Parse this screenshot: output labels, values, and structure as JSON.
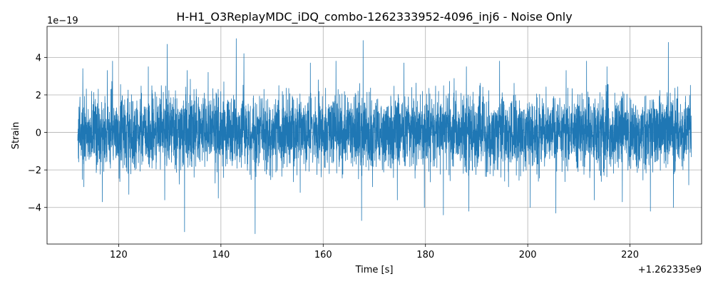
{
  "chart_data": {
    "type": "line",
    "title": "H-H1_O3ReplayMDC_iDQ_combo-1262333952-4096_inj6 - Noise Only",
    "xlabel": "Time [s]",
    "ylabel": "Strain",
    "x_offset_label": "+1.262335e9",
    "y_scale_label": "1e−19",
    "xlim": [
      106,
      234
    ],
    "ylim": [
      -5.95,
      5.65
    ],
    "x_ticks": [
      120,
      140,
      160,
      180,
      200,
      220
    ],
    "x_tick_labels": [
      "120",
      "140",
      "160",
      "180",
      "200",
      "220"
    ],
    "y_ticks": [
      -4,
      -2,
      0,
      2,
      4
    ],
    "y_tick_labels": [
      "−4",
      "−2",
      "0",
      "2",
      "4"
    ],
    "grid": true,
    "legend": "none",
    "series": [
      {
        "color": "#1f77b4",
        "x_start": 112,
        "x_end": 232,
        "typical_amplitude": 1.8,
        "peaks": [
          {
            "x": 113.0,
            "y": 3.4
          },
          {
            "x": 117.8,
            "y": 3.3
          },
          {
            "x": 118.8,
            "y": 3.8
          },
          {
            "x": 125.8,
            "y": 3.5
          },
          {
            "x": 129.5,
            "y": 4.7
          },
          {
            "x": 133.4,
            "y": 3.3
          },
          {
            "x": 137.5,
            "y": 3.2
          },
          {
            "x": 143.0,
            "y": 5.0
          },
          {
            "x": 144.5,
            "y": 4.2
          },
          {
            "x": 157.5,
            "y": 3.7
          },
          {
            "x": 162.5,
            "y": 3.8
          },
          {
            "x": 167.8,
            "y": 4.9
          },
          {
            "x": 175.8,
            "y": 3.7
          },
          {
            "x": 179.8,
            "y": 4.8
          },
          {
            "x": 183.5,
            "y": 4.0
          },
          {
            "x": 188.0,
            "y": 3.5
          },
          {
            "x": 194.5,
            "y": 3.8
          },
          {
            "x": 207.5,
            "y": 3.3
          },
          {
            "x": 211.5,
            "y": 3.8
          },
          {
            "x": 215.5,
            "y": 3.5
          },
          {
            "x": 227.5,
            "y": 4.8
          },
          {
            "x": 231.5,
            "y": 3.3
          }
        ],
        "troughs": [
          {
            "x": 113.2,
            "y": -2.9
          },
          {
            "x": 116.8,
            "y": -3.7
          },
          {
            "x": 122.0,
            "y": -3.3
          },
          {
            "x": 129.0,
            "y": -3.6
          },
          {
            "x": 132.9,
            "y": -5.3
          },
          {
            "x": 139.5,
            "y": -3.5
          },
          {
            "x": 146.7,
            "y": -5.4
          },
          {
            "x": 155.5,
            "y": -3.2
          },
          {
            "x": 167.5,
            "y": -4.7
          },
          {
            "x": 174.5,
            "y": -3.6
          },
          {
            "x": 179.8,
            "y": -4.0
          },
          {
            "x": 183.5,
            "y": -4.4
          },
          {
            "x": 188.5,
            "y": -4.2
          },
          {
            "x": 200.5,
            "y": -4.0
          },
          {
            "x": 205.5,
            "y": -4.3
          },
          {
            "x": 213.0,
            "y": -3.6
          },
          {
            "x": 218.5,
            "y": -3.7
          },
          {
            "x": 224.0,
            "y": -4.2
          },
          {
            "x": 228.5,
            "y": -4.0
          },
          {
            "x": 231.5,
            "y": -2.8
          }
        ]
      }
    ]
  }
}
